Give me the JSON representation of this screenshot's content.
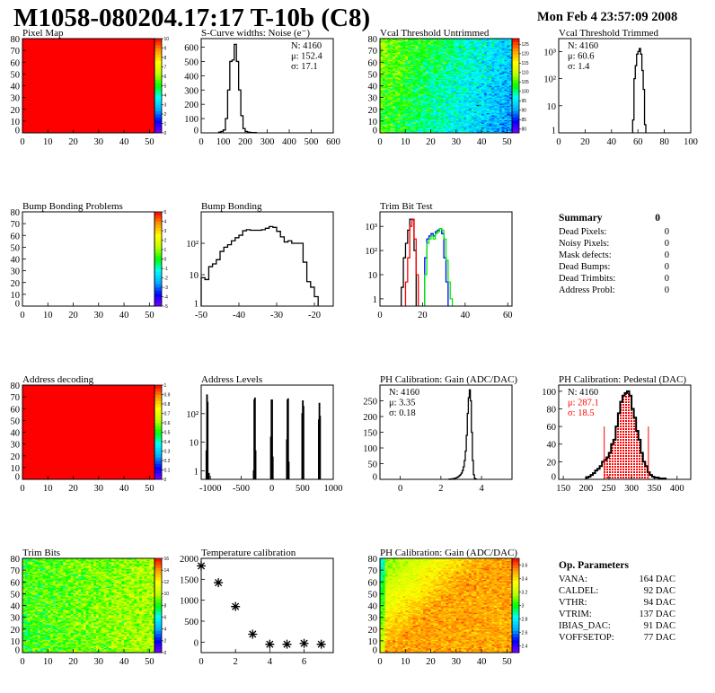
{
  "header": {
    "title": "M1058-080204.17:17 T-10b (C8)",
    "date": "Mon Feb  4 23:57:09 2008"
  },
  "palette": [
    "#7f00ff",
    "#0000ff",
    "#00b0ff",
    "#00ffff",
    "#00ff00",
    "#c0ff00",
    "#ffff00",
    "#ff9900",
    "#ff0000"
  ],
  "chart_data": [
    {
      "type": "heatmap",
      "title": "Pixel Map",
      "xlim": [
        0,
        52
      ],
      "ylim": [
        0,
        80
      ],
      "xticks": [
        0,
        10,
        20,
        30,
        40,
        50
      ],
      "yticks": [
        0,
        10,
        20,
        30,
        40,
        50,
        60,
        70,
        80
      ],
      "zlim": [
        0,
        10
      ],
      "zticks": [
        0,
        1,
        2,
        3,
        4,
        5,
        6,
        7,
        8,
        9,
        10
      ],
      "uniform_value": 10
    },
    {
      "type": "bar",
      "title": "S-Curve widths: Noise (e⁻)",
      "xlim": [
        0,
        600
      ],
      "ylim": [
        0,
        660
      ],
      "xticks": [
        0,
        100,
        200,
        300,
        400,
        500,
        600
      ],
      "yticks": [
        0,
        100,
        200,
        300,
        400,
        500,
        600
      ],
      "start": 80,
      "width": 10,
      "values": [
        5,
        10,
        20,
        100,
        300,
        500,
        510,
        620,
        500,
        300,
        120,
        30,
        10,
        5,
        3,
        2,
        2
      ],
      "stats": {
        "pos": "right",
        "lines": [
          "N: 4160",
          "μ: 152.4",
          "σ: 17.1"
        ]
      }
    },
    {
      "type": "heatmap",
      "title": "Vcal Threshold Untrimmed",
      "xlim": [
        0,
        52
      ],
      "ylim": [
        0,
        80
      ],
      "xticks": [
        0,
        10,
        20,
        30,
        40,
        50
      ],
      "yticks": [
        0,
        10,
        20,
        30,
        40,
        50,
        60,
        70,
        80
      ],
      "zlim": [
        78,
        128
      ],
      "zticks": [
        80,
        85,
        90,
        95,
        100,
        105,
        110,
        115,
        120,
        125
      ],
      "pattern": "vcal"
    },
    {
      "type": "bar",
      "title": "Vcal Threshold Trimmed",
      "log": true,
      "xlim": [
        0,
        100
      ],
      "ylim": [
        1,
        3000
      ],
      "xticks": [
        0,
        20,
        40,
        60,
        80,
        100
      ],
      "yticks": [
        1,
        10,
        100,
        1000
      ],
      "ytick_labels": [
        "1",
        "10",
        "10²",
        "10³"
      ],
      "start": 56,
      "width": 1,
      "values": [
        3,
        100,
        300,
        800,
        1000,
        1300,
        800,
        200,
        40,
        2
      ],
      "stats": {
        "pos": "left",
        "lines": [
          "N: 4160",
          "μ: 60.6",
          "σ:  1.4"
        ]
      }
    },
    {
      "type": "heatmap",
      "title": "Bump Bonding Problems",
      "xlim": [
        0,
        52
      ],
      "ylim": [
        0,
        80
      ],
      "xticks": [
        0,
        10,
        20,
        30,
        40,
        50
      ],
      "yticks": [
        0,
        10,
        20,
        30,
        40,
        50,
        60,
        70,
        80
      ],
      "zlim": [
        -5,
        5
      ],
      "zticks": [
        -5,
        -4,
        -3,
        -2,
        -1,
        0,
        1,
        2,
        3,
        4,
        5
      ],
      "empty": true
    },
    {
      "type": "bar",
      "title": "Bump Bonding",
      "log": true,
      "xlim": [
        -50,
        -15
      ],
      "ylim": [
        1,
        1000
      ],
      "xticks": [
        -50,
        -40,
        -30,
        -20
      ],
      "yticks": [
        1,
        10,
        100
      ],
      "ytick_labels": [
        "1",
        "10",
        "10²"
      ],
      "start": -50,
      "width": 1,
      "values": [
        8,
        7,
        18,
        22,
        30,
        55,
        75,
        90,
        120,
        150,
        180,
        250,
        270,
        260,
        260,
        260,
        270,
        300,
        340,
        320,
        240,
        160,
        110,
        120,
        100,
        100,
        100,
        25,
        6,
        4,
        2
      ]
    },
    {
      "type": "bar",
      "title": "Trim Bit Test",
      "log": true,
      "xlim": [
        0,
        62
      ],
      "ylim": [
        0.5,
        4000
      ],
      "xticks": [
        0,
        20,
        40,
        60
      ],
      "yticks": [
        1,
        10,
        100,
        1000
      ],
      "ytick_labels": [
        "1",
        "10",
        "10²",
        "10³"
      ],
      "series": [
        {
          "color": "#000000",
          "start": 10,
          "width": 1,
          "values": [
            3,
            50,
            200,
            700,
            2000,
            1900,
            100
          ]
        },
        {
          "color": "#ff0000",
          "start": 12,
          "width": 1,
          "values": [
            5,
            50,
            1000,
            2000,
            300,
            10
          ]
        },
        {
          "color": "#0000ff",
          "start": 21,
          "width": 1,
          "values": [
            50,
            300,
            400,
            500,
            400,
            600,
            700,
            800,
            500,
            50,
            5
          ]
        },
        {
          "color": "#00ee00",
          "start": 21,
          "width": 1,
          "values": [
            10,
            200,
            300,
            400,
            300,
            500,
            600,
            800,
            700,
            300,
            40,
            5,
            1
          ]
        }
      ]
    },
    {
      "type": "table",
      "title": "Summary",
      "value": "0",
      "rows": [
        {
          "label": "Dead Pixels:",
          "value": "0"
        },
        {
          "label": "Noisy Pixels:",
          "value": "0"
        },
        {
          "label": "Mask defects:",
          "value": "0"
        },
        {
          "label": "Dead Bumps:",
          "value": "0"
        },
        {
          "label": "Dead Trimbits:",
          "value": "0"
        },
        {
          "label": "Address Probl:",
          "value": "0"
        }
      ]
    },
    {
      "type": "heatmap",
      "title": "Address decoding",
      "xlim": [
        0,
        52
      ],
      "ylim": [
        0,
        80
      ],
      "xticks": [
        0,
        10,
        20,
        30,
        40,
        50
      ],
      "yticks": [
        0,
        10,
        20,
        30,
        40,
        50,
        60,
        70,
        80
      ],
      "zlim": [
        0,
        1
      ],
      "zticks": [
        0,
        0.1,
        0.2,
        0.3,
        0.4,
        0.5,
        0.6,
        0.7,
        0.8,
        0.9,
        1
      ],
      "uniform_value": 1
    },
    {
      "type": "bar",
      "title": "Address Levels",
      "log": true,
      "xlim": [
        -1150,
        1000
      ],
      "ylim": [
        0.5,
        1000
      ],
      "xticks": [
        -1000,
        -500,
        0,
        500,
        1000
      ],
      "yticks": [
        1,
        10,
        100
      ],
      "ytick_labels": [
        "1",
        "10",
        "10²"
      ],
      "width": 10,
      "bins": [
        [
          -1070,
          5
        ],
        [
          -1060,
          450
        ],
        [
          -1050,
          250
        ],
        [
          -1030,
          0.8
        ],
        [
          -300,
          1
        ],
        [
          -290,
          300
        ],
        [
          -280,
          350
        ],
        [
          -270,
          5
        ],
        [
          -20,
          15
        ],
        [
          -10,
          300
        ],
        [
          0,
          300
        ],
        [
          10,
          3
        ],
        [
          240,
          12
        ],
        [
          250,
          300
        ],
        [
          260,
          330
        ],
        [
          270,
          2
        ],
        [
          490,
          100
        ],
        [
          500,
          280
        ],
        [
          510,
          180
        ],
        [
          760,
          60
        ],
        [
          770,
          230
        ],
        [
          780,
          80
        ]
      ]
    },
    {
      "type": "bar",
      "title": "PH Calibration: Gain (ADC/DAC)",
      "xlim": [
        -1,
        5.5
      ],
      "ylim": [
        0,
        300
      ],
      "xticks": [
        0,
        2,
        4
      ],
      "yticks": [
        0,
        50,
        100,
        150,
        200,
        250
      ],
      "start": 2.4,
      "width": 0.05,
      "values": [
        1,
        0,
        1,
        2,
        2,
        3,
        4,
        5,
        7,
        9,
        12,
        15,
        20,
        28,
        40,
        60,
        90,
        140,
        210,
        260,
        285,
        250,
        150,
        60,
        15,
        3,
        1
      ],
      "stats": {
        "pos": "left",
        "lines": [
          "N: 4160",
          "μ: 3.35",
          "σ: 0.18"
        ]
      }
    },
    {
      "type": "bar",
      "title": "PH Calibration: Pedestal (DAC)",
      "xlim": [
        140,
        430
      ],
      "ylim": [
        0,
        107
      ],
      "xticks": [
        150,
        200,
        250,
        300,
        350,
        400
      ],
      "yticks": [
        0,
        20,
        40,
        60,
        80,
        100
      ],
      "start": 200,
      "width": 5,
      "values": [
        2,
        3,
        5,
        7,
        10,
        12,
        15,
        20,
        22,
        25,
        30,
        40,
        45,
        60,
        75,
        88,
        95,
        98,
        100,
        95,
        80,
        70,
        55,
        45,
        30,
        20,
        15,
        8,
        5,
        3,
        2,
        2,
        1,
        1,
        1
      ],
      "fill_range": [
        240,
        335
      ],
      "fill_color": "#ff0000",
      "cut_lines": [
        240,
        337
      ],
      "cut_height": 60,
      "stats": {
        "pos": "left",
        "lines": [
          "N: 4160",
          "μ: 287.1",
          "σ: 18.5"
        ],
        "colors": [
          "#000000",
          "#ff0000",
          "#ff0000"
        ]
      }
    },
    {
      "type": "heatmap",
      "title": "Trim Bits",
      "xlim": [
        0,
        52
      ],
      "ylim": [
        0,
        80
      ],
      "xticks": [
        0,
        10,
        20,
        30,
        40,
        50
      ],
      "yticks": [
        0,
        10,
        20,
        30,
        40,
        50,
        60,
        70,
        80
      ],
      "zlim": [
        0,
        16
      ],
      "zticks": [
        0,
        2,
        4,
        6,
        8,
        10,
        12,
        14,
        16
      ],
      "pattern": "trim"
    },
    {
      "type": "scatter",
      "title": "Temperature calibration",
      "xlim": [
        0,
        7.7
      ],
      "ylim": [
        -250,
        2000
      ],
      "xticks": [
        0,
        2,
        4,
        6
      ],
      "yticks": [
        0,
        500,
        1000,
        1500,
        2000
      ],
      "x": [
        0,
        1,
        2,
        3,
        4,
        5,
        6,
        7
      ],
      "y": [
        1820,
        1420,
        850,
        190,
        -50,
        -50,
        -30,
        -50
      ],
      "marker": "asterisk"
    },
    {
      "type": "heatmap",
      "title": "PH Calibration: Gain (ADC/DAC)",
      "xlim": [
        0,
        52
      ],
      "ylim": [
        0,
        80
      ],
      "xticks": [
        0,
        10,
        20,
        30,
        40,
        50
      ],
      "yticks": [
        0,
        10,
        20,
        30,
        40,
        50,
        60,
        70,
        80
      ],
      "zlim": [
        2.3,
        3.7
      ],
      "zticks": [
        2.4,
        2.6,
        2.8,
        3,
        3.2,
        3.4,
        3.6
      ],
      "pattern": "gain"
    },
    {
      "type": "table",
      "title": "Op. Parameters",
      "rows": [
        {
          "label": "VANA:",
          "value": "164 DAC"
        },
        {
          "label": "CALDEL:",
          "value": "92 DAC"
        },
        {
          "label": "VTHR:",
          "value": "94 DAC"
        },
        {
          "label": "VTRIM:",
          "value": "137 DAC"
        },
        {
          "label": "IBIAS_DAC:",
          "value": "91 DAC"
        },
        {
          "label": "VOFFSETOP:",
          "value": "77 DAC"
        }
      ]
    }
  ]
}
